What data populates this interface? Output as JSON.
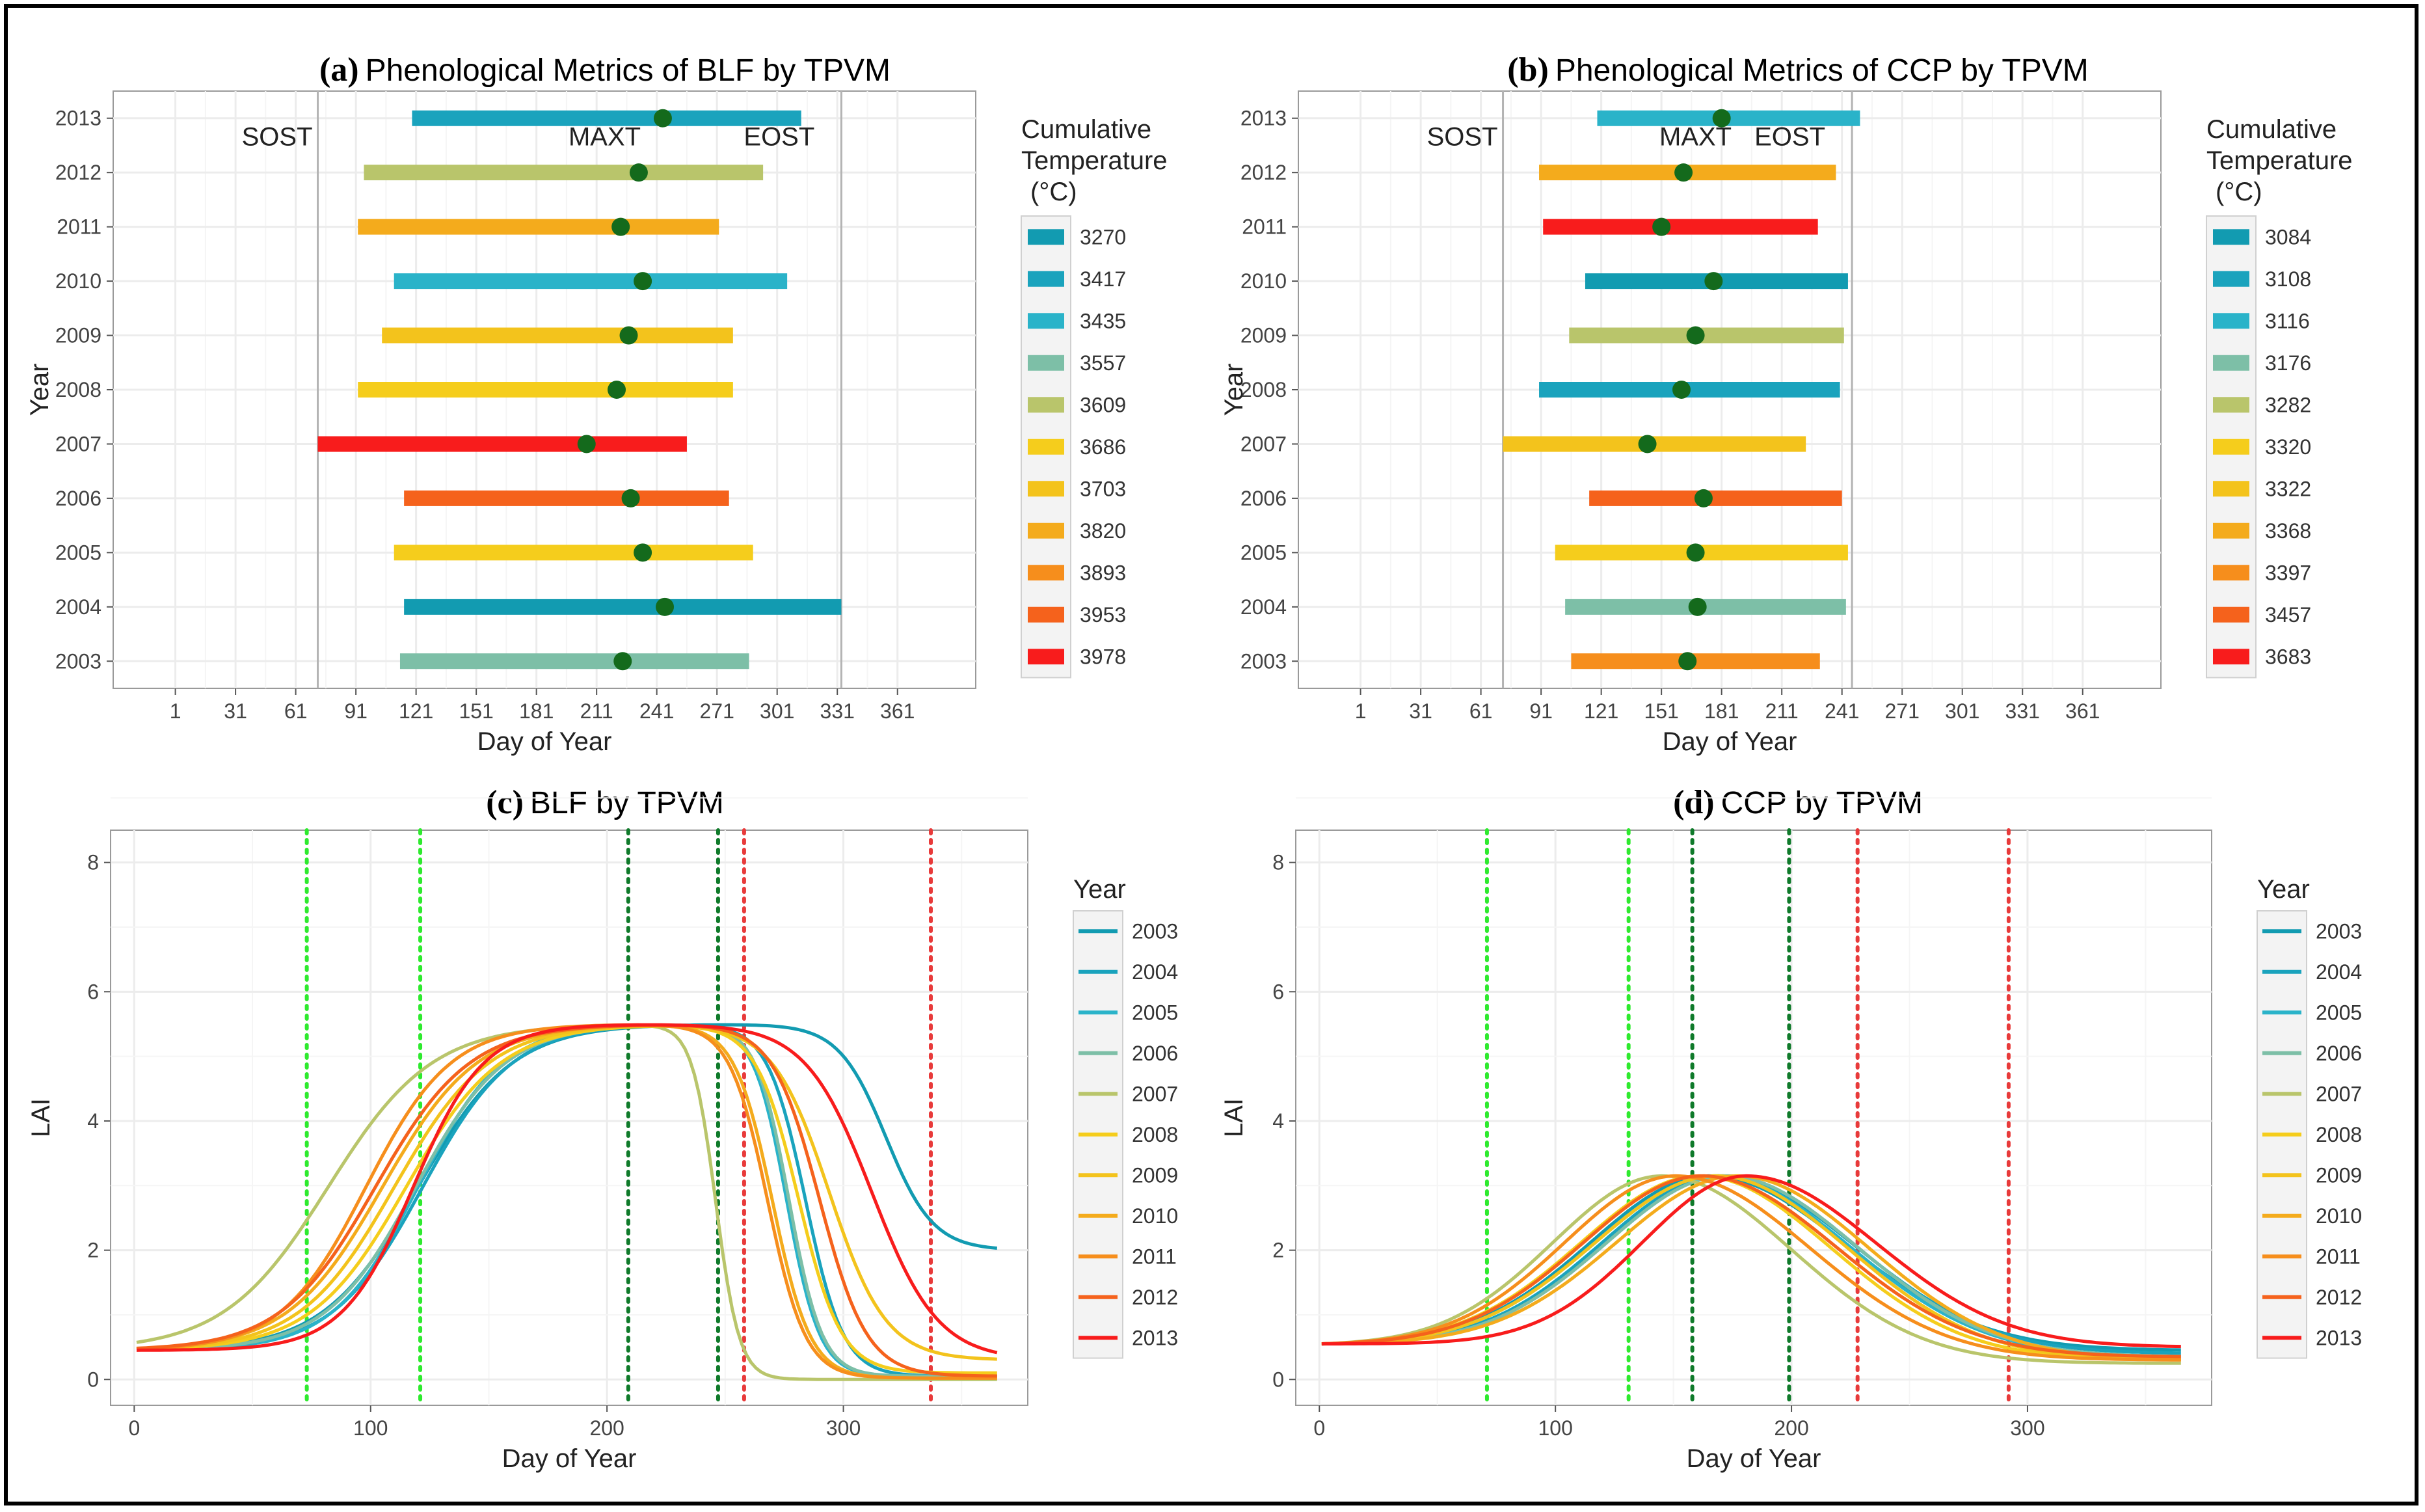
{
  "figure": "Phenology figure",
  "chart_data": [
    {
      "type": "gantt",
      "panel_label": "(a)",
      "title": "Phenological Metrics of BLF by TPVM",
      "xlabel": "Day of Year",
      "ylabel": "Year",
      "xlim": [
        -30,
        400
      ],
      "xticks": [
        1,
        31,
        61,
        91,
        121,
        151,
        181,
        211,
        241,
        271,
        301,
        331,
        361
      ],
      "years": [
        "2003",
        "2004",
        "2005",
        "2006",
        "2007",
        "2008",
        "2009",
        "2010",
        "2011",
        "2012",
        "2013"
      ],
      "reference_lines": [
        {
          "label": "SOST",
          "x": 72
        },
        {
          "label": "MAXT",
          "x": 215
        },
        {
          "label": "EOST",
          "x": 333
        }
      ],
      "legend_title": [
        "Cumulative",
        "Temperature",
        "(°C)"
      ],
      "legend": [
        {
          "value": "3270",
          "color": "#129bb1"
        },
        {
          "value": "3417",
          "color": "#1aa3bd"
        },
        {
          "value": "3435",
          "color": "#2ab3c9"
        },
        {
          "value": "3557",
          "color": "#7dbfa7"
        },
        {
          "value": "3609",
          "color": "#b9c56b"
        },
        {
          "value": "3686",
          "color": "#f5cd1c"
        },
        {
          "value": "3703",
          "color": "#f3c31c"
        },
        {
          "value": "3820",
          "color": "#f4ab1c"
        },
        {
          "value": "3893",
          "color": "#f68e1c"
        },
        {
          "value": "3953",
          "color": "#f5621c"
        },
        {
          "value": "3978",
          "color": "#f81c1c"
        }
      ],
      "bars": [
        {
          "year": "2003",
          "start": 113,
          "end": 287,
          "max": 224,
          "color": "#7dbfa7"
        },
        {
          "year": "2004",
          "start": 115,
          "end": 333,
          "max": 245,
          "color": "#129bb1"
        },
        {
          "year": "2005",
          "start": 110,
          "end": 289,
          "max": 234,
          "color": "#f5cd1c"
        },
        {
          "year": "2006",
          "start": 115,
          "end": 277,
          "max": 228,
          "color": "#f5621c"
        },
        {
          "year": "2007",
          "start": 72,
          "end": 256,
          "max": 206,
          "color": "#f81c1c"
        },
        {
          "year": "2008",
          "start": 92,
          "end": 279,
          "max": 221,
          "color": "#f5cd1c"
        },
        {
          "year": "2009",
          "start": 104,
          "end": 279,
          "max": 227,
          "color": "#f3c31c"
        },
        {
          "year": "2010",
          "start": 110,
          "end": 306,
          "max": 234,
          "color": "#2ab3c9"
        },
        {
          "year": "2011",
          "start": 92,
          "end": 272,
          "max": 223,
          "color": "#f4ab1c"
        },
        {
          "year": "2012",
          "start": 95,
          "end": 294,
          "max": 232,
          "color": "#b9c56b"
        },
        {
          "year": "2013",
          "start": 119,
          "end": 313,
          "max": 244,
          "color": "#1aa3bd"
        }
      ]
    },
    {
      "type": "gantt",
      "panel_label": "(b)",
      "title": "Phenological Metrics of CCP by TPVM",
      "xlabel": "Day of Year",
      "ylabel": "Year",
      "xlim": [
        -30,
        400
      ],
      "xticks": [
        1,
        31,
        61,
        91,
        121,
        151,
        181,
        211,
        241,
        271,
        301,
        331,
        361
      ],
      "years": [
        "2003",
        "2004",
        "2005",
        "2006",
        "2007",
        "2008",
        "2009",
        "2010",
        "2011",
        "2012",
        "2013"
      ],
      "reference_lines": [
        {
          "label": "SOST",
          "x": 72
        },
        {
          "label": "MAXT",
          "x": 168
        },
        {
          "label": "EOST",
          "x": 246
        }
      ],
      "legend_title": [
        "Cumulative",
        "Temperature",
        "(°C)"
      ],
      "legend": [
        {
          "value": "3084",
          "color": "#129bb1"
        },
        {
          "value": "3108",
          "color": "#1aa3bd"
        },
        {
          "value": "3116",
          "color": "#2ab3c9"
        },
        {
          "value": "3176",
          "color": "#7dbfa7"
        },
        {
          "value": "3282",
          "color": "#b9c56b"
        },
        {
          "value": "3320",
          "color": "#f5cd1c"
        },
        {
          "value": "3322",
          "color": "#f3c31c"
        },
        {
          "value": "3368",
          "color": "#f4ab1c"
        },
        {
          "value": "3397",
          "color": "#f68e1c"
        },
        {
          "value": "3457",
          "color": "#f5621c"
        },
        {
          "value": "3683",
          "color": "#f81c1c"
        }
      ],
      "bars": [
        {
          "year": "2003",
          "start": 106,
          "end": 230,
          "max": 164,
          "color": "#f68e1c"
        },
        {
          "year": "2004",
          "start": 103,
          "end": 243,
          "max": 169,
          "color": "#7dbfa7"
        },
        {
          "year": "2005",
          "start": 98,
          "end": 244,
          "max": 168,
          "color": "#f5cd1c"
        },
        {
          "year": "2006",
          "start": 115,
          "end": 241,
          "max": 172,
          "color": "#f5621c"
        },
        {
          "year": "2007",
          "start": 72,
          "end": 223,
          "max": 144,
          "color": "#f3c31c"
        },
        {
          "year": "2008",
          "start": 90,
          "end": 240,
          "max": 161,
          "color": "#1aa3bd"
        },
        {
          "year": "2009",
          "start": 105,
          "end": 242,
          "max": 168,
          "color": "#b9c56b"
        },
        {
          "year": "2010",
          "start": 113,
          "end": 244,
          "max": 177,
          "color": "#129bb1"
        },
        {
          "year": "2011",
          "start": 92,
          "end": 229,
          "max": 151,
          "color": "#f81c1c"
        },
        {
          "year": "2012",
          "start": 90,
          "end": 238,
          "max": 162,
          "color": "#f4ab1c"
        },
        {
          "year": "2013",
          "start": 119,
          "end": 250,
          "max": 181,
          "color": "#2ab3c9"
        }
      ]
    },
    {
      "type": "line",
      "panel_label": "(c)",
      "title": "BLF by TPVM",
      "xlabel": "Day of Year",
      "ylabel": "LAI",
      "xlim": [
        -10,
        378
      ],
      "ylim": [
        -0.4,
        8.5
      ],
      "xticks": [
        0,
        100,
        200,
        300
      ],
      "yticks": [
        0,
        2,
        4,
        6,
        8
      ],
      "legend_title": "Year",
      "vlines": [
        {
          "x": 73,
          "color": "#2eea2e"
        },
        {
          "x": 121,
          "color": "#2eea2e"
        },
        {
          "x": 209,
          "color": "#0f7a2a"
        },
        {
          "x": 247,
          "color": "#0f7a2a"
        },
        {
          "x": 258,
          "color": "#e83a3a"
        },
        {
          "x": 337,
          "color": "#e83a3a"
        }
      ],
      "series": [
        {
          "name": "2003",
          "color": "#129bb1",
          "start": 0.45,
          "max": 5.5,
          "plateau": [
            158,
            308
          ],
          "up_mid": 120,
          "up_w": 20,
          "down_mid": 318,
          "down_w": 10,
          "end": 2.0
        },
        {
          "name": "2004",
          "color": "#1aa3bd",
          "start": 0.45,
          "max": 5.5,
          "plateau": [
            170,
            258
          ],
          "up_mid": 122,
          "up_w": 19,
          "down_mid": 284,
          "down_w": 8,
          "end": 0.05
        },
        {
          "name": "2005",
          "color": "#2ab3c9",
          "start": 0.45,
          "max": 5.5,
          "plateau": [
            165,
            255
          ],
          "up_mid": 120,
          "up_w": 18,
          "down_mid": 276,
          "down_w": 7,
          "end": 0.05
        },
        {
          "name": "2006",
          "color": "#7dbfa7",
          "start": 0.45,
          "max": 5.5,
          "plateau": [
            168,
            250
          ],
          "up_mid": 119,
          "up_w": 19,
          "down_mid": 277,
          "down_w": 7,
          "end": 0.05
        },
        {
          "name": "2007",
          "color": "#b9c56b",
          "start": 0.45,
          "max": 5.5,
          "plateau": [
            145,
            233
          ],
          "up_mid": 82,
          "up_w": 22,
          "down_mid": 246,
          "down_w": 5,
          "end": 0.0
        },
        {
          "name": "2008",
          "color": "#f5cd1c",
          "start": 0.45,
          "max": 5.5,
          "plateau": [
            160,
            255
          ],
          "up_mid": 115,
          "up_w": 20,
          "down_mid": 281,
          "down_w": 9,
          "end": 0.1
        },
        {
          "name": "2009",
          "color": "#f3c31c",
          "start": 0.45,
          "max": 5.5,
          "plateau": [
            158,
            262
          ],
          "up_mid": 110,
          "up_w": 20,
          "down_mid": 294,
          "down_w": 12,
          "end": 0.3
        },
        {
          "name": "2010",
          "color": "#f4ab1c",
          "start": 0.45,
          "max": 5.5,
          "plateau": [
            158,
            250
          ],
          "up_mid": 105,
          "up_w": 20,
          "down_mid": 270,
          "down_w": 8,
          "end": 0.02
        },
        {
          "name": "2011",
          "color": "#f68e1c",
          "start": 0.45,
          "max": 5.5,
          "plateau": [
            150,
            245
          ],
          "up_mid": 98,
          "up_w": 18,
          "down_mid": 268,
          "down_w": 8,
          "end": 0.02
        },
        {
          "name": "2012",
          "color": "#f5621c",
          "start": 0.45,
          "max": 5.5,
          "plateau": [
            155,
            258
          ],
          "up_mid": 102,
          "up_w": 20,
          "down_mid": 290,
          "down_w": 10,
          "end": 0.05
        },
        {
          "name": "2013",
          "color": "#f81c1c",
          "start": 0.45,
          "max": 5.5,
          "plateau": [
            165,
            285
          ],
          "up_mid": 118,
          "up_w": 15,
          "down_mid": 312,
          "down_w": 14,
          "end": 0.3
        }
      ]
    },
    {
      "type": "line",
      "panel_label": "(d)",
      "title": "CCP by TPVM",
      "xlabel": "Day of Year",
      "ylabel": "LAI",
      "xlim": [
        -10,
        378
      ],
      "ylim": [
        -0.4,
        8.5
      ],
      "xticks": [
        0,
        100,
        200,
        300
      ],
      "yticks": [
        0,
        2,
        4,
        6,
        8
      ],
      "legend_title": "Year",
      "vlines": [
        {
          "x": 71,
          "color": "#2eea2e"
        },
        {
          "x": 131,
          "color": "#2eea2e"
        },
        {
          "x": 158,
          "color": "#0f7a2a"
        },
        {
          "x": 199,
          "color": "#0f7a2a"
        },
        {
          "x": 228,
          "color": "#e83a3a"
        },
        {
          "x": 292,
          "color": "#e83a3a"
        }
      ],
      "series": [
        {
          "name": "2003",
          "color": "#129bb1",
          "start": 0.55,
          "peak": 3.15,
          "peak_day": 165,
          "rise": 50,
          "fall": 58,
          "end": 0.45
        },
        {
          "name": "2004",
          "color": "#1aa3bd",
          "start": 0.55,
          "peak": 3.15,
          "peak_day": 170,
          "rise": 50,
          "fall": 57,
          "end": 0.4
        },
        {
          "name": "2005",
          "color": "#2ab3c9",
          "start": 0.55,
          "peak": 3.15,
          "peak_day": 168,
          "rise": 51,
          "fall": 57,
          "end": 0.35
        },
        {
          "name": "2006",
          "color": "#7dbfa7",
          "start": 0.55,
          "peak": 3.15,
          "peak_day": 172,
          "rise": 50,
          "fall": 56,
          "end": 0.35
        },
        {
          "name": "2007",
          "color": "#b9c56b",
          "start": 0.55,
          "peak": 3.15,
          "peak_day": 145,
          "rise": 46,
          "fall": 55,
          "end": 0.25
        },
        {
          "name": "2008",
          "color": "#f5cd1c",
          "start": 0.55,
          "peak": 3.15,
          "peak_day": 161,
          "rise": 50,
          "fall": 56,
          "end": 0.3
        },
        {
          "name": "2009",
          "color": "#f3c31c",
          "start": 0.55,
          "peak": 3.15,
          "peak_day": 168,
          "rise": 51,
          "fall": 56,
          "end": 0.3
        },
        {
          "name": "2010",
          "color": "#f4ab1c",
          "start": 0.55,
          "peak": 3.15,
          "peak_day": 177,
          "rise": 51,
          "fall": 56,
          "end": 0.3
        },
        {
          "name": "2011",
          "color": "#f68e1c",
          "start": 0.55,
          "peak": 3.15,
          "peak_day": 151,
          "rise": 47,
          "fall": 57,
          "end": 0.3
        },
        {
          "name": "2012",
          "color": "#f5621c",
          "start": 0.55,
          "peak": 3.15,
          "peak_day": 162,
          "rise": 50,
          "fall": 57,
          "end": 0.35
        },
        {
          "name": "2013",
          "color": "#f81c1c",
          "start": 0.55,
          "peak": 3.15,
          "peak_day": 181,
          "rise": 44,
          "fall": 55,
          "end": 0.5
        }
      ]
    }
  ]
}
